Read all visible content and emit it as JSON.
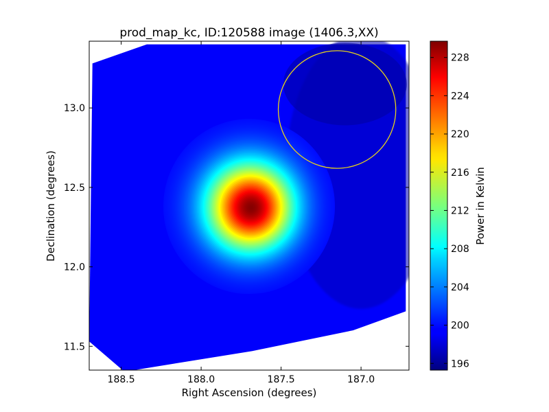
{
  "chart_data": {
    "type": "heatmap",
    "title": "prod_map_kc, ID:120588 image (1406.3,XX)",
    "xlabel": "Right Ascension (degrees)",
    "ylabel": "Declination (degrees)",
    "xlim": [
      188.7,
      186.7
    ],
    "ylim": [
      11.35,
      13.42
    ],
    "x_ticks": [
      {
        "value": 188.5,
        "label": "188.5"
      },
      {
        "value": 188.0,
        "label": "188.0"
      },
      {
        "value": 187.5,
        "label": "187.5"
      },
      {
        "value": 187.0,
        "label": "187.0"
      }
    ],
    "y_ticks": [
      {
        "value": 11.5,
        "label": "11.5"
      },
      {
        "value": 12.0,
        "label": "12.0"
      },
      {
        "value": 12.5,
        "label": "12.5"
      },
      {
        "value": 13.0,
        "label": "13.0"
      }
    ],
    "colormap": "jet",
    "colorbar": {
      "label": "Power in Kelvin",
      "range": [
        195.3,
        229.7
      ],
      "ticks": [
        {
          "value": 196,
          "label": "196"
        },
        {
          "value": 200,
          "label": "200"
        },
        {
          "value": 204,
          "label": "204"
        },
        {
          "value": 208,
          "label": "208"
        },
        {
          "value": 212,
          "label": "212"
        },
        {
          "value": 216,
          "label": "216"
        },
        {
          "value": 220,
          "label": "220"
        },
        {
          "value": 224,
          "label": "224"
        },
        {
          "value": 228,
          "label": "228"
        }
      ]
    },
    "peak": {
      "ra": 187.7,
      "dec": 12.38,
      "value": 229.5
    },
    "background_value": 199.5,
    "circle_annotation": {
      "center_ra": 187.15,
      "center_dec": 12.99,
      "radius_deg": 0.37,
      "color": "#e6d21c"
    },
    "grid": false
  }
}
